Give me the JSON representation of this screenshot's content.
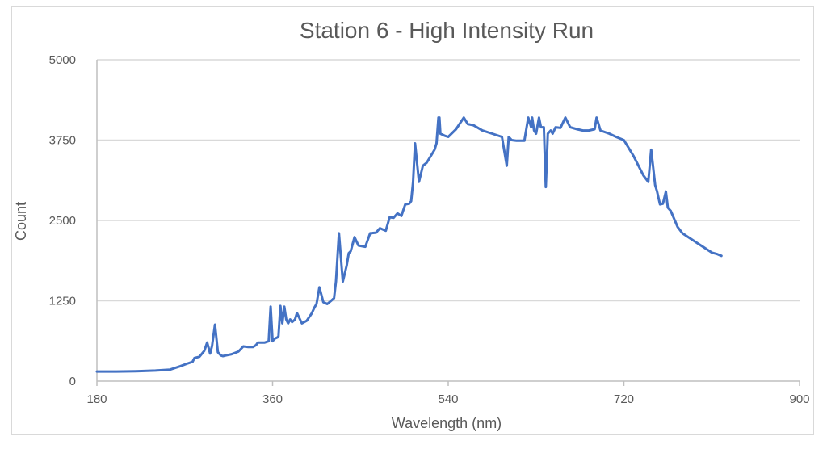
{
  "chart_data": {
    "type": "line",
    "title": "Station 6 - High Intensity Run",
    "xlabel": "Wavelength (nm)",
    "ylabel": "Count",
    "xlim": [
      180,
      900
    ],
    "ylim": [
      0,
      5000
    ],
    "xticks": [
      180,
      360,
      540,
      720,
      900
    ],
    "yticks": [
      0,
      1250,
      2500,
      3750,
      5000
    ],
    "grid": "horizontal",
    "legend": "none",
    "colors": {
      "series": "#4472c4",
      "text": "#595959",
      "grid": "#d9d9d9"
    },
    "series": [
      {
        "name": "",
        "x": [
          180,
          200,
          220,
          240,
          255,
          265,
          272,
          278,
          280,
          285,
          290,
          293,
          296,
          298,
          301,
          304,
          307,
          309,
          312,
          318,
          325,
          330,
          335,
          340,
          343,
          345,
          347,
          352,
          356,
          358,
          360,
          362,
          365,
          366,
          368,
          370,
          372,
          374,
          376,
          378,
          380,
          383,
          385,
          390,
          395,
          400,
          403,
          405,
          408,
          412,
          416,
          420,
          423,
          425,
          428,
          432,
          436,
          438,
          440,
          444,
          448,
          455,
          460,
          466,
          470,
          476,
          480,
          484,
          488,
          492,
          496,
          500,
          502,
          504,
          506,
          510,
          514,
          518,
          522,
          526,
          528,
          530,
          531,
          532,
          536,
          540,
          548,
          556,
          560,
          566,
          575,
          585,
          595,
          600,
          602,
          605,
          610,
          618,
          622,
          625,
          626,
          628,
          630,
          633,
          635,
          638,
          640,
          642,
          645,
          647,
          650,
          655,
          660,
          665,
          672,
          678,
          684,
          690,
          692,
          696,
          705,
          712,
          720,
          730,
          740,
          745,
          748,
          752,
          754,
          757,
          760,
          763,
          765,
          768,
          775,
          780,
          785,
          790,
          795,
          800,
          805,
          810,
          815,
          820
        ],
        "values": [
          150,
          150,
          155,
          165,
          180,
          230,
          270,
          300,
          360,
          380,
          470,
          600,
          430,
          550,
          880,
          450,
          400,
          390,
          400,
          420,
          460,
          540,
          530,
          530,
          560,
          600,
          600,
          600,
          620,
          1160,
          620,
          660,
          680,
          700,
          1170,
          900,
          1160,
          960,
          900,
          960,
          920,
          960,
          1060,
          900,
          940,
          1050,
          1150,
          1200,
          1460,
          1230,
          1200,
          1250,
          1290,
          1550,
          2300,
          1550,
          1800,
          1990,
          2020,
          2240,
          2110,
          2090,
          2300,
          2310,
          2380,
          2340,
          2550,
          2540,
          2610,
          2570,
          2750,
          2760,
          2800,
          3100,
          3700,
          3100,
          3350,
          3400,
          3500,
          3600,
          3700,
          4100,
          4100,
          3850,
          3820,
          3800,
          3920,
          4100,
          4000,
          3980,
          3900,
          3850,
          3800,
          3350,
          3800,
          3750,
          3740,
          3740,
          4100,
          3950,
          4100,
          3900,
          3850,
          4100,
          3950,
          3950,
          3020,
          3850,
          3900,
          3850,
          3950,
          3940,
          4100,
          3950,
          3920,
          3900,
          3900,
          3920,
          4100,
          3900,
          3850,
          3800,
          3750,
          3500,
          3200,
          3100,
          3600,
          3050,
          2950,
          2750,
          2760,
          2950,
          2700,
          2650,
          2400,
          2300,
          2250,
          2200,
          2150,
          2100,
          2050,
          2000,
          1980,
          1950
        ]
      }
    ]
  }
}
